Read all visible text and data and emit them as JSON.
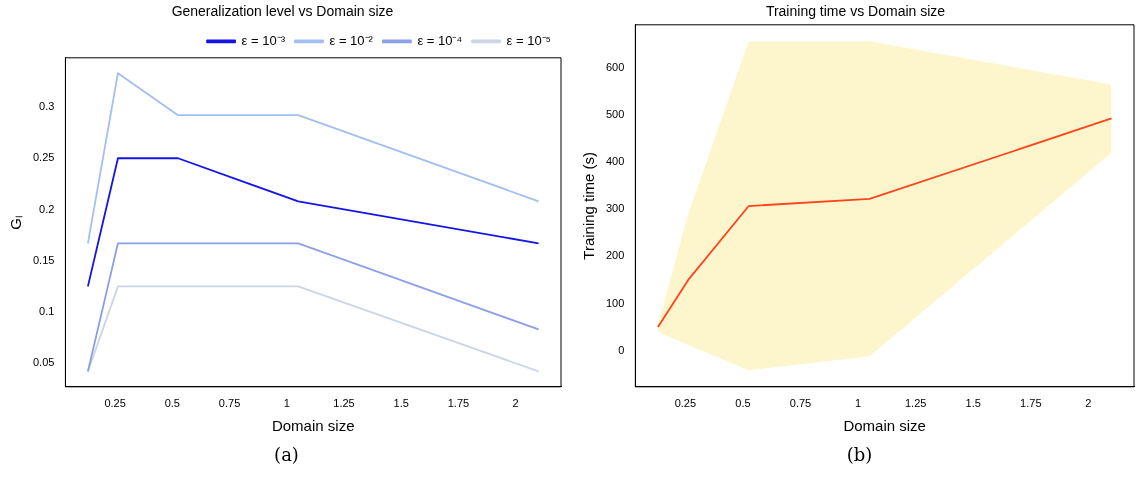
{
  "chart_data": [
    {
      "type": "line",
      "title": "Generalization level vs Domain size",
      "xlabel": "Domain size",
      "ylabel": "Gₗ",
      "x": [
        0.13125,
        0.2625,
        0.525,
        1.05,
        2.1
      ],
      "series": [
        {
          "name": "ε = 10⁻³",
          "color": "#1414e6",
          "values": [
            0.125,
            0.25,
            0.25,
            0.208,
            0.167
          ]
        },
        {
          "name": "ε = 10⁻²",
          "color": "#a3bff2",
          "values": [
            0.167,
            0.333,
            0.292,
            0.292,
            0.208
          ]
        },
        {
          "name": "ε = 10⁻⁴",
          "color": "#8c9fe8",
          "values": [
            0.042,
            0.167,
            0.167,
            0.167,
            0.083
          ]
        },
        {
          "name": "ε = 10⁻⁵",
          "color": "#cbd5e6",
          "values": [
            0.042,
            0.125,
            0.125,
            0.125,
            0.042
          ]
        }
      ],
      "xlim": [
        0.033,
        2.198
      ],
      "xticks": [
        0.25,
        0.5,
        0.75,
        1.0,
        1.25,
        1.5,
        1.75,
        2.0
      ],
      "ylim": [
        0.027,
        0.348
      ],
      "yticks": [
        0.05,
        0.1,
        0.15,
        0.2,
        0.25,
        0.3
      ],
      "grid": false,
      "legend": "top right",
      "marker": "none",
      "line_style": "solid",
      "annotations": [
        "(a)"
      ]
    },
    {
      "type": "line",
      "title": "Training time vs Domain size",
      "xlabel": "Domain size",
      "ylabel": "Training time (s)",
      "x": [
        0.13125,
        0.2625,
        0.525,
        1.05,
        2.1
      ],
      "series": [
        {
          "color": "#ff0000",
          "values": [
            50,
            150,
            307,
            322,
            493
          ],
          "lower": [
            40,
            12,
            -42,
            -12,
            420
          ],
          "upper": [
            55,
            290,
            657,
            657,
            565
          ]
        }
      ],
      "xlim": [
        0.033,
        2.198
      ],
      "xticks": [
        0.25,
        0.5,
        0.75,
        1.0,
        1.25,
        1.5,
        1.75,
        2.0
      ],
      "ylim": [
        -77,
        692
      ],
      "yticks": [
        0,
        100,
        200,
        300,
        400,
        500,
        600
      ],
      "grid": false,
      "legend": false,
      "marker": "none",
      "line_style": "solid",
      "annotations": [
        "(b)"
      ]
    }
  ]
}
